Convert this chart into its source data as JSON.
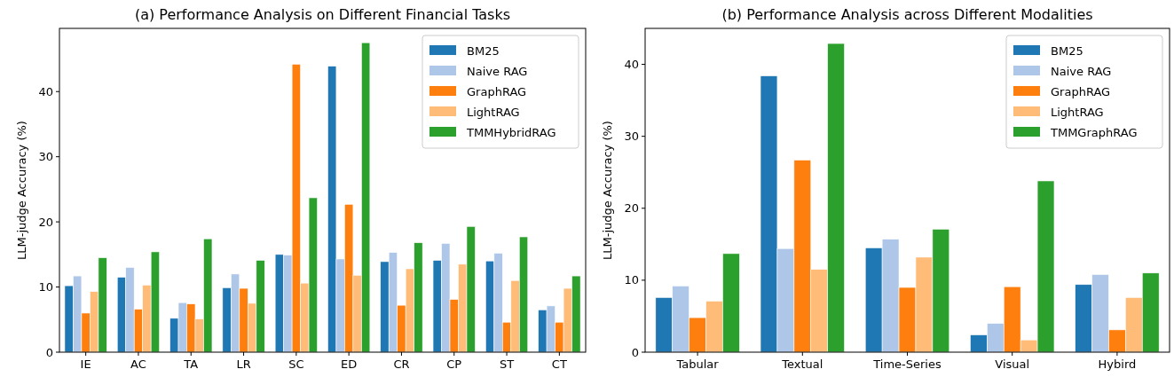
{
  "chart_data": [
    {
      "type": "bar",
      "title": "(a) Performance Analysis on Different Financial Tasks",
      "ylabel": "LLM-judge Accuracy (%)",
      "categories": [
        "IE",
        "AC",
        "TA",
        "LR",
        "SC",
        "ED",
        "CR",
        "CP",
        "ST",
        "CT"
      ],
      "ylim": [
        0,
        49.7
      ],
      "yticks": [
        0,
        10,
        20,
        30,
        40
      ],
      "legend": "top right",
      "series": [
        {
          "name": "BM25",
          "color": "#1f77b4",
          "values": [
            10.2,
            11.5,
            5.2,
            9.9,
            15.0,
            43.9,
            13.9,
            14.1,
            14.0,
            6.5
          ]
        },
        {
          "name": "Naive RAG",
          "color": "#aec7e8",
          "values": [
            11.7,
            13.0,
            7.6,
            12.0,
            14.9,
            14.3,
            15.3,
            16.7,
            15.2,
            7.1
          ]
        },
        {
          "name": "GraphRAG",
          "color": "#ff7f0e",
          "values": [
            6.0,
            6.6,
            7.4,
            9.8,
            44.2,
            22.7,
            7.2,
            8.1,
            4.6,
            4.6
          ]
        },
        {
          "name": "LightRAG",
          "color": "#ffbb78",
          "values": [
            9.3,
            10.3,
            5.1,
            7.5,
            10.6,
            11.8,
            12.8,
            13.5,
            11.0,
            9.8
          ]
        },
        {
          "name": "TMMHybridRAG",
          "color": "#2ca02c",
          "values": [
            14.5,
            15.4,
            17.4,
            14.1,
            23.7,
            47.5,
            16.8,
            19.3,
            17.7,
            11.7
          ]
        }
      ]
    },
    {
      "type": "bar",
      "title": "(b) Performance Analysis across Different Modalities",
      "ylabel": "LLM-judge Accuracy (%)",
      "categories": [
        "Tabular",
        "Textual",
        "Time-Series",
        "Visual",
        "Hybird"
      ],
      "ylim": [
        0,
        45
      ],
      "yticks": [
        0,
        10,
        20,
        30,
        40
      ],
      "legend": "top right",
      "series": [
        {
          "name": "BM25",
          "color": "#1f77b4",
          "values": [
            7.6,
            38.4,
            14.5,
            2.4,
            9.4
          ]
        },
        {
          "name": "Naive RAG",
          "color": "#aec7e8",
          "values": [
            9.2,
            14.4,
            15.7,
            4.0,
            10.8
          ]
        },
        {
          "name": "GraphRAG",
          "color": "#ff7f0e",
          "values": [
            4.8,
            26.7,
            9.0,
            9.1,
            3.1
          ]
        },
        {
          "name": "LightRAG",
          "color": "#ffbb78",
          "values": [
            7.1,
            11.5,
            13.2,
            1.7,
            7.6
          ]
        },
        {
          "name": "TMMGraphRAG",
          "color": "#2ca02c",
          "values": [
            13.7,
            42.9,
            17.1,
            23.8,
            11.0
          ]
        }
      ]
    }
  ]
}
